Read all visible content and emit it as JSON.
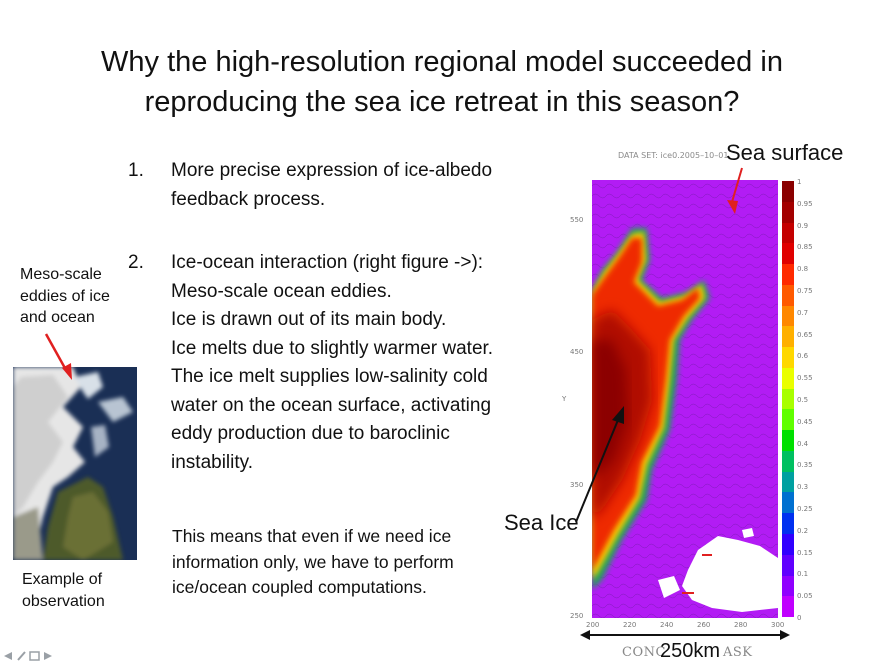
{
  "title": {
    "line1": "Why the high-resolution regional model succeeded in",
    "line2": "reproducing the sea ice retreat in this season?"
  },
  "points": [
    {
      "number": "1.",
      "lines": [
        "More precise expression of ice-albedo",
        "feedback process."
      ]
    },
    {
      "number": "2.",
      "lines": [
        "Ice-ocean interaction (right figure ->):",
        "Meso-scale ocean eddies.",
        "Ice is drawn out of its main body.",
        "Ice melts due to slightly warmer water.",
        "The ice melt supplies low-salinity cold",
        "water on the ocean surface, activating",
        "eddy production due to baroclinic",
        "instability."
      ]
    }
  ],
  "note": {
    "line1": "This means that even if we need ice",
    "line2": "information only, we have to perform",
    "line3": "ice/ocean coupled computations."
  },
  "left_panel": {
    "caption_top": [
      "Meso-scale",
      "eddies of ice",
      "and ocean"
    ],
    "caption_bottom": [
      "Example of",
      "observation"
    ]
  },
  "figure": {
    "dataset_label": "DATA SET: ice0.2005–10–01",
    "y_ticks": [
      "550",
      "450",
      "350",
      "250"
    ],
    "x_ticks": [
      "200",
      "220",
      "240",
      "260",
      "280",
      "300"
    ],
    "colorbar_ticks": [
      "1",
      "0.95",
      "0.9",
      "0.85",
      "0.8",
      "0.75",
      "0.7",
      "0.65",
      "0.6",
      "0.55",
      "0.5",
      "0.45",
      "0.4",
      "0.35",
      "0.3",
      "0.25",
      "0.2",
      "0.15",
      "0.1",
      "0.05",
      "0"
    ],
    "colorbar_colors": [
      "#8a0000",
      "#a30000",
      "#c40000",
      "#e00000",
      "#ff2a00",
      "#ff5a00",
      "#ff8800",
      "#ffb000",
      "#ffd800",
      "#eaff00",
      "#a8ff00",
      "#60ff00",
      "#00e000",
      "#00c060",
      "#00a0a0",
      "#0070d0",
      "#0030f0",
      "#3000ff",
      "#6000ff",
      "#9000ff",
      "#c000ff"
    ],
    "bottom_label": "CONC",
    "bottom_label_right": "ASK",
    "annotation_sea_surface": "Sea surface",
    "annotation_sea_ice": "Sea Ice",
    "scale_label": "250km",
    "y_axis_letter": "Y"
  },
  "colors": {
    "arrow_red": "#e02020",
    "ocean_purple": "#b21cf4",
    "ice_red": "#d91a00"
  }
}
